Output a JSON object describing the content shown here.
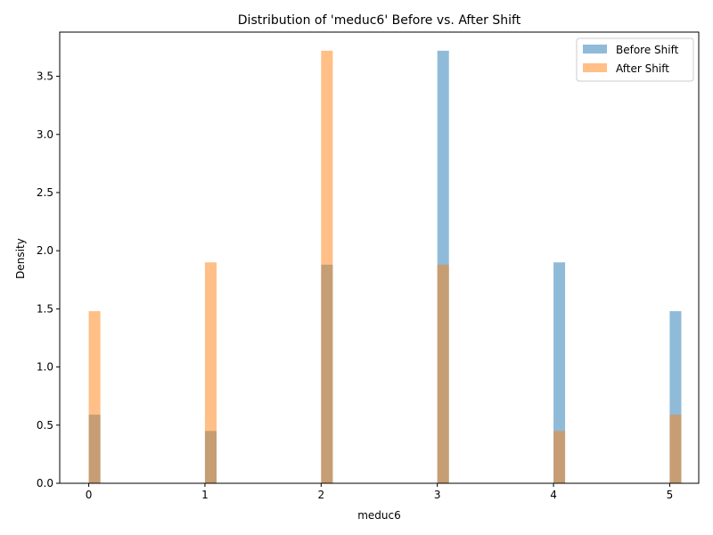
{
  "chart_data": {
    "type": "bar",
    "title": "Distribution of 'meduc6' Before vs. After Shift",
    "xlabel": "meduc6",
    "ylabel": "Density",
    "xlim": [
      -0.25,
      5.25
    ],
    "ylim": [
      0,
      3.88
    ],
    "xticks": [
      0,
      1,
      2,
      3,
      4,
      5
    ],
    "yticks": [
      0.0,
      0.5,
      1.0,
      1.5,
      2.0,
      2.5,
      3.0,
      3.5
    ],
    "bin_width": 0.1,
    "grid": false,
    "legend_position": "top-right",
    "series": [
      {
        "name": "Before Shift",
        "color": "#1f77b4",
        "opacity": 0.5,
        "x": [
          0,
          1,
          2,
          3,
          4,
          5
        ],
        "values": [
          0.59,
          0.45,
          1.88,
          3.72,
          1.9,
          1.48
        ]
      },
      {
        "name": "After Shift",
        "color": "#ff7f0e",
        "opacity": 0.5,
        "x": [
          0,
          1,
          2,
          3,
          4,
          5
        ],
        "values": [
          1.48,
          1.9,
          3.72,
          1.88,
          0.45,
          0.59
        ]
      }
    ]
  }
}
